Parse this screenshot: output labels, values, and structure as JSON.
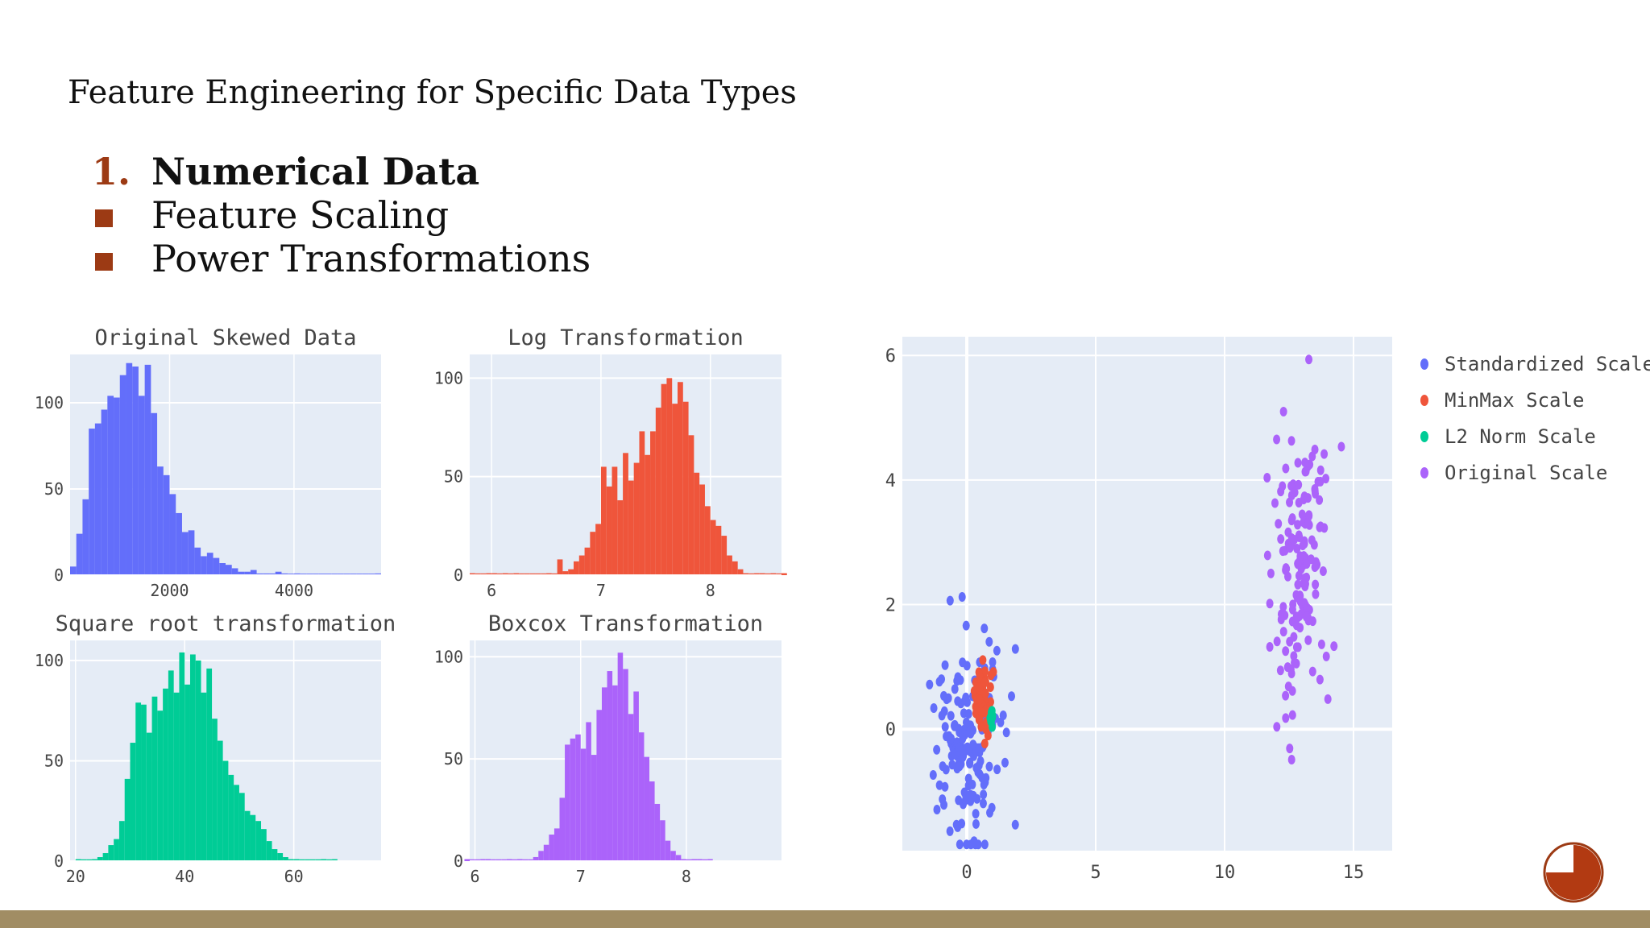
{
  "slide": {
    "title": "Feature Engineering for Specific Data Types",
    "numbered_item": {
      "marker": "1.",
      "label": "Numerical Data"
    },
    "bullets": [
      "Feature Scaling",
      "Power Transformations"
    ]
  },
  "colors": {
    "accent": "#9c3a14",
    "footer": "#a18d64",
    "plot_bg": "#e5ecf6",
    "grid": "#ffffff",
    "blue": "#636efa",
    "red": "#ef553b",
    "green": "#00cc96",
    "purple": "#ab63fa"
  },
  "chart_data": [
    {
      "type": "bar",
      "title": "Original Skewed Data",
      "color": "#636efa",
      "x_start": 400,
      "bin_width": 100,
      "values": [
        5,
        24,
        44,
        85,
        88,
        96,
        104,
        103,
        116,
        123,
        121,
        104,
        122,
        94,
        63,
        58,
        47,
        36,
        25,
        26,
        16,
        11,
        13,
        10,
        7,
        6,
        4,
        2,
        2,
        3,
        1,
        1,
        1,
        2,
        1,
        0,
        1,
        0,
        0,
        0,
        0,
        0,
        0,
        0,
        0,
        0,
        0,
        0,
        0,
        1
      ],
      "xlim": [
        400,
        5400
      ],
      "ylim": [
        0,
        128
      ],
      "xticks": [
        2000,
        4000
      ],
      "xtick_labels": [
        "2000",
        "4000"
      ],
      "yticks": [
        0,
        50,
        100
      ],
      "ytick_labels": [
        "0",
        "50",
        "100"
      ]
    },
    {
      "type": "bar",
      "title": "Log Transformation",
      "color": "#ef553b",
      "x_start": 5.8,
      "bin_width": 0.05,
      "values": [
        1,
        0,
        0,
        1,
        1,
        0,
        1,
        0,
        1,
        0,
        0,
        0,
        0,
        0,
        1,
        0,
        8,
        2,
        3,
        7,
        10,
        14,
        22,
        26,
        55,
        45,
        55,
        38,
        62,
        48,
        57,
        73,
        61,
        73,
        85,
        97,
        100,
        87,
        98,
        88,
        71,
        52,
        46,
        35,
        28,
        25,
        20,
        10,
        7,
        3,
        1,
        0,
        1,
        1,
        0,
        1,
        0,
        1
      ],
      "xlim": [
        5.8,
        8.65
      ],
      "ylim": [
        0,
        112
      ],
      "xticks": [
        6,
        7,
        8
      ],
      "xtick_labels": [
        "6",
        "7",
        "8"
      ],
      "yticks": [
        0,
        50,
        100
      ],
      "ytick_labels": [
        "0",
        "50",
        "100"
      ]
    },
    {
      "type": "bar",
      "title": "Square root transformation",
      "color": "#00cc96",
      "x_start": 20,
      "bin_width": 1,
      "values": [
        1,
        0,
        0,
        1,
        2,
        4,
        8,
        11,
        20,
        41,
        59,
        79,
        78,
        64,
        82,
        75,
        86,
        95,
        84,
        104,
        88,
        103,
        100,
        84,
        96,
        71,
        60,
        50,
        43,
        38,
        34,
        25,
        23,
        20,
        16,
        10,
        6,
        4,
        2,
        1,
        1,
        0,
        0,
        0,
        0,
        1,
        0,
        1
      ],
      "xlim": [
        19,
        76
      ],
      "ylim": [
        0,
        110
      ],
      "xticks": [
        20,
        40,
        60
      ],
      "xtick_labels": [
        "20",
        "40",
        "60"
      ],
      "yticks": [
        0,
        50,
        100
      ],
      "ytick_labels": [
        "0",
        "50",
        "100"
      ]
    },
    {
      "type": "bar",
      "title": "Boxcox Transformation",
      "color": "#ab63fa",
      "x_start": 5.9,
      "bin_width": 0.05,
      "values": [
        1,
        0,
        0,
        1,
        1,
        0,
        0,
        0,
        1,
        0,
        1,
        0,
        0,
        2,
        5,
        8,
        13,
        16,
        31,
        57,
        60,
        62,
        55,
        68,
        52,
        74,
        85,
        93,
        86,
        102,
        94,
        72,
        83,
        63,
        51,
        39,
        28,
        20,
        10,
        5,
        3,
        1,
        0,
        1,
        1,
        0,
        1
      ],
      "xlim": [
        5.95,
        8.9
      ],
      "ylim": [
        0,
        108
      ],
      "xticks": [
        6,
        7,
        8
      ],
      "xtick_labels": [
        "6",
        "7",
        "8"
      ],
      "yticks": [
        0,
        50,
        100
      ],
      "ytick_labels": [
        "0",
        "50",
        "100"
      ]
    },
    {
      "type": "scatter",
      "title": "",
      "xlim": [
        -2.5,
        16.5
      ],
      "ylim": [
        -1.95,
        6.3
      ],
      "xticks": [
        0,
        5,
        10,
        15
      ],
      "xtick_labels": [
        "0",
        "5",
        "10",
        "15"
      ],
      "yticks": [
        0,
        2,
        4,
        6
      ],
      "ytick_labels": [
        "0",
        "2",
        "4",
        "6"
      ],
      "legend_position": "top-right",
      "series": [
        {
          "name": "Standardized Scale",
          "color": "#636efa",
          "cx": 0,
          "cy": -0.1,
          "sx": 0.65,
          "sy": 0.95,
          "n": 170,
          "seed": 11
        },
        {
          "name": "MinMax Scale",
          "color": "#ef553b",
          "cx": 0.55,
          "cy": 0.5,
          "sx": 0.2,
          "sy": 0.27,
          "n": 70,
          "seed": 23
        },
        {
          "name": "L2 Norm Scale",
          "color": "#00cc96",
          "cx": 0.97,
          "cy": 0.22,
          "sx": 0.05,
          "sy": 0.12,
          "n": 10,
          "seed": 37
        },
        {
          "name": "Original Scale",
          "color": "#ab63fa",
          "cx": 12.9,
          "cy": 2.6,
          "sx": 0.55,
          "sy": 1.2,
          "n": 160,
          "seed": 53
        }
      ]
    }
  ]
}
